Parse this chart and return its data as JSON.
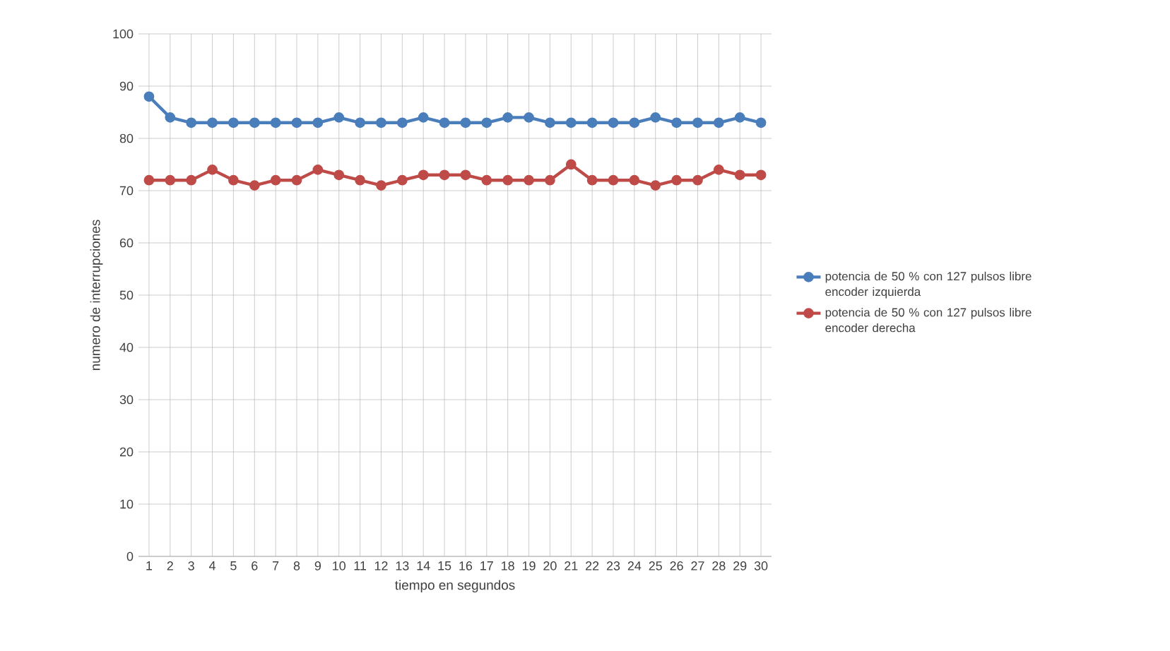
{
  "chart_data": {
    "type": "line",
    "xlabel": "tiempo en segundos",
    "ylabel": "numero de interrupciones",
    "categories": [
      "1",
      "2",
      "3",
      "4",
      "5",
      "6",
      "7",
      "8",
      "9",
      "10",
      "11",
      "12",
      "13",
      "14",
      "15",
      "16",
      "17",
      "18",
      "19",
      "20",
      "21",
      "22",
      "23",
      "24",
      "25",
      "26",
      "27",
      "28",
      "29",
      "30"
    ],
    "series": [
      {
        "name": "potencia de 50 % con 127 pulsos libre encoder izquierda",
        "color": "#4a7ebb",
        "values": [
          88,
          84,
          83,
          83,
          83,
          83,
          83,
          83,
          83,
          84,
          83,
          83,
          83,
          84,
          83,
          83,
          83,
          84,
          84,
          83,
          83,
          83,
          83,
          83,
          84,
          83,
          83,
          83,
          84,
          83
        ]
      },
      {
        "name": "potencia de 50 % con 127 pulsos libre encoder derecha",
        "color": "#be4b48",
        "values": [
          72,
          72,
          72,
          74,
          72,
          71,
          72,
          72,
          74,
          73,
          72,
          71,
          72,
          73,
          73,
          73,
          72,
          72,
          72,
          72,
          75,
          72,
          72,
          72,
          71,
          72,
          72,
          74,
          73,
          73
        ]
      }
    ],
    "ylim": [
      0,
      100
    ],
    "yticks": [
      0,
      10,
      20,
      30,
      40,
      50,
      60,
      70,
      80,
      90,
      100
    ],
    "grid": true,
    "legend": "right",
    "marker": "circle",
    "line_style": "solid"
  }
}
